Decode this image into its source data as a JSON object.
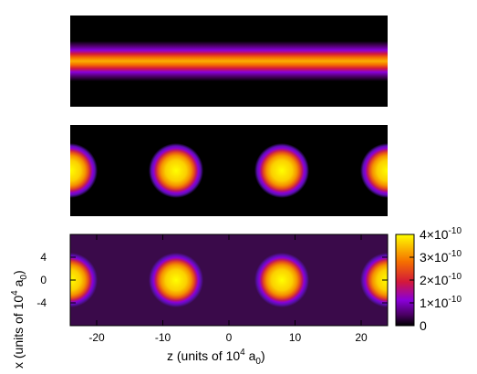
{
  "chart_data": [
    {
      "type": "heatmap",
      "panel": "top",
      "pattern": "band",
      "band_center_x": 0,
      "peak_value": 4e-10
    },
    {
      "type": "heatmap",
      "panel": "middle",
      "pattern": "spots",
      "spot_centers_z": [
        -24,
        -8,
        8,
        24
      ],
      "spot_center_x": 0,
      "peak_value": 4e-10,
      "background_value": 0
    },
    {
      "type": "heatmap",
      "panel": "bottom",
      "pattern": "spots",
      "spot_centers_z": [
        -24,
        -8,
        8,
        24
      ],
      "spot_center_x": 0,
      "peak_value": 4e-10,
      "background_value": 3e-11,
      "xlim": [
        -24,
        24
      ],
      "ylim": [
        -8,
        8
      ],
      "xticks": [
        "-20",
        "-10",
        "0",
        "10",
        "20"
      ],
      "xtick_values": [
        -20,
        -10,
        0,
        10,
        20
      ],
      "yticks": [
        "4",
        "0",
        "-4"
      ],
      "ytick_values": [
        4,
        0,
        -4
      ],
      "xlabel_parts": [
        "z  (units of 10",
        "4",
        " a",
        "0",
        ")"
      ],
      "ylabel_parts": [
        "x  (units of 10",
        "4",
        " a",
        "0",
        ")"
      ]
    }
  ],
  "colorbar": {
    "min": 0,
    "max": 4e-10,
    "ticks": [
      {
        "value": 4e-10,
        "mant": "4×10",
        "exp": "-10"
      },
      {
        "value": 3e-10,
        "mant": "3×10",
        "exp": "-10"
      },
      {
        "value": 2e-10,
        "mant": "2×10",
        "exp": "-10"
      },
      {
        "value": 1e-10,
        "mant": "1×10",
        "exp": "-10"
      },
      {
        "value": 0,
        "mant": "0",
        "exp": ""
      }
    ],
    "palette": [
      "#000000",
      "#4a0063",
      "#8a00d9",
      "#d3183a",
      "#f56f00",
      "#fbc500",
      "#ffff00"
    ]
  }
}
